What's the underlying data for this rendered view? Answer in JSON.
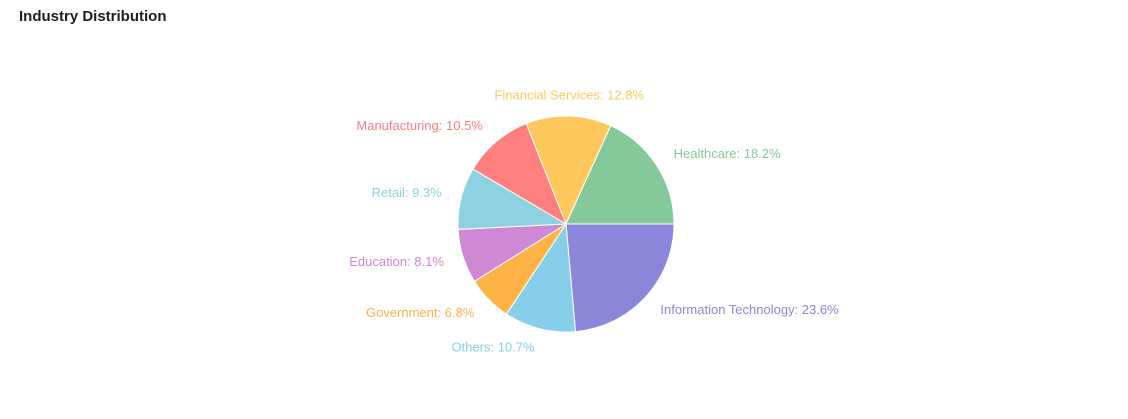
{
  "chart_data": {
    "type": "pie",
    "title": "Industry Distribution",
    "slices": [
      {
        "label": "Information Technology",
        "value": 23.6,
        "display": "Information Technology: 23.6%",
        "color": "#8c86db"
      },
      {
        "label": "Others",
        "value": 10.7,
        "display": "Others: 10.7%",
        "color": "#87ceeb"
      },
      {
        "label": "Government",
        "value": 6.8,
        "display": "Government: 6.8%",
        "color": "#ffb347"
      },
      {
        "label": "Education",
        "value": 8.1,
        "display": "Education: 8.1%",
        "color": "#cf88d4"
      },
      {
        "label": "Retail",
        "value": 9.3,
        "display": "Retail: 9.3%",
        "color": "#8ed1e0"
      },
      {
        "label": "Manufacturing",
        "value": 10.5,
        "display": "Manufacturing: 10.5%",
        "color": "#ff7f7f"
      },
      {
        "label": "Financial Services",
        "value": 12.8,
        "display": "Financial Services: 12.8%",
        "color": "#ffc85c"
      },
      {
        "label": "Healthcare",
        "value": 18.2,
        "display": "Healthcare: 18.2%",
        "color": "#85c99b"
      }
    ],
    "start_angle_deg": 0,
    "direction": "clockwise",
    "legend": "none",
    "labels": "outside"
  }
}
